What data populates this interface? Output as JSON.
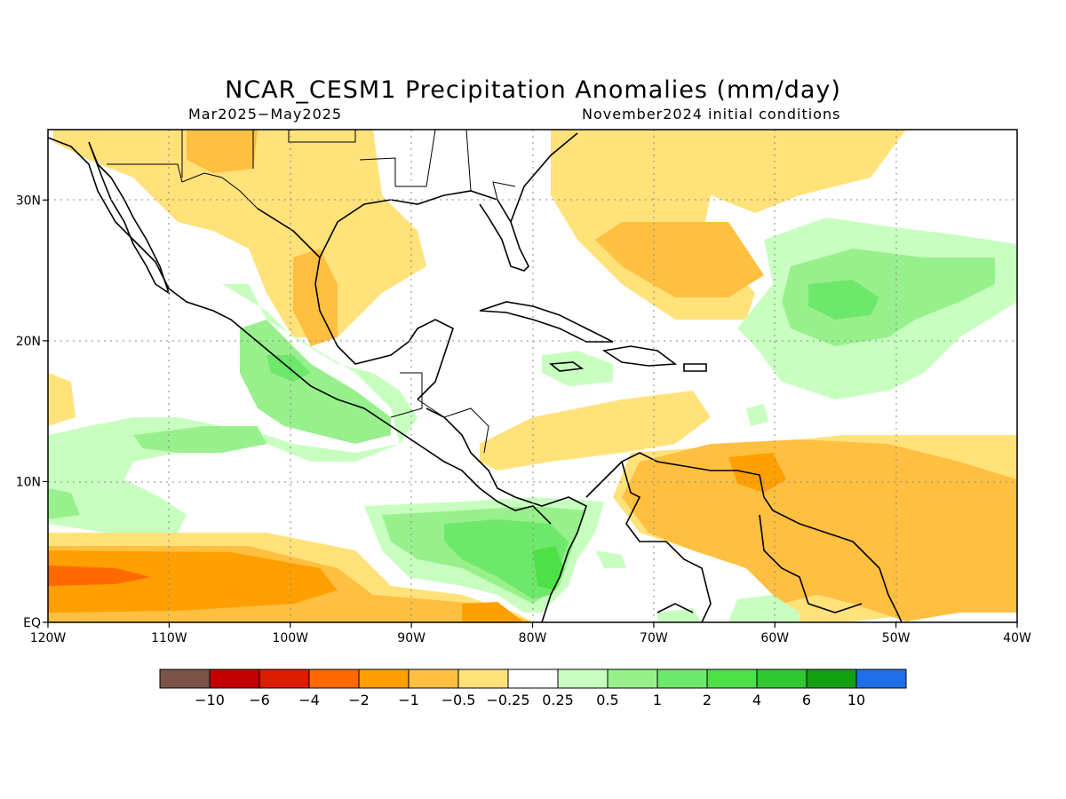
{
  "title": "NCAR_CESM1 Precipitation Anomalies (mm/day)",
  "period": "Mar2025−May2025",
  "init": "November2024 initial conditions",
  "map": {
    "lon_range": [
      -120,
      -40
    ],
    "lat_range": [
      0,
      35
    ],
    "lon_ticks": [
      {
        "value": -120,
        "label": "120W"
      },
      {
        "value": -110,
        "label": "110W"
      },
      {
        "value": -100,
        "label": "100W"
      },
      {
        "value": -90,
        "label": "90W"
      },
      {
        "value": -80,
        "label": "80W"
      },
      {
        "value": -70,
        "label": "70W"
      },
      {
        "value": -60,
        "label": "60W"
      },
      {
        "value": -50,
        "label": "50W"
      },
      {
        "value": -40,
        "label": "40W"
      }
    ],
    "lat_ticks": [
      {
        "value": 0,
        "label": "EQ"
      },
      {
        "value": 10,
        "label": "10N"
      },
      {
        "value": 20,
        "label": "20N"
      },
      {
        "value": 30,
        "label": "30N"
      }
    ]
  },
  "colorbar": {
    "colors": [
      "#7a5446",
      "#c40000",
      "#e01c00",
      "#ff6a00",
      "#ff9f00",
      "#ffbf40",
      "#ffe27a",
      "#ffffff",
      "#c8ffc0",
      "#98f08c",
      "#6ee86a",
      "#4ee048",
      "#30c830",
      "#12a012",
      "#1f6fe8"
    ],
    "labels": [
      "−10",
      "−6",
      "−4",
      "−2",
      "−1",
      "−0.5",
      "−0.25",
      "0.25",
      "0.5",
      "1",
      "2",
      "4",
      "6",
      "10"
    ]
  }
}
